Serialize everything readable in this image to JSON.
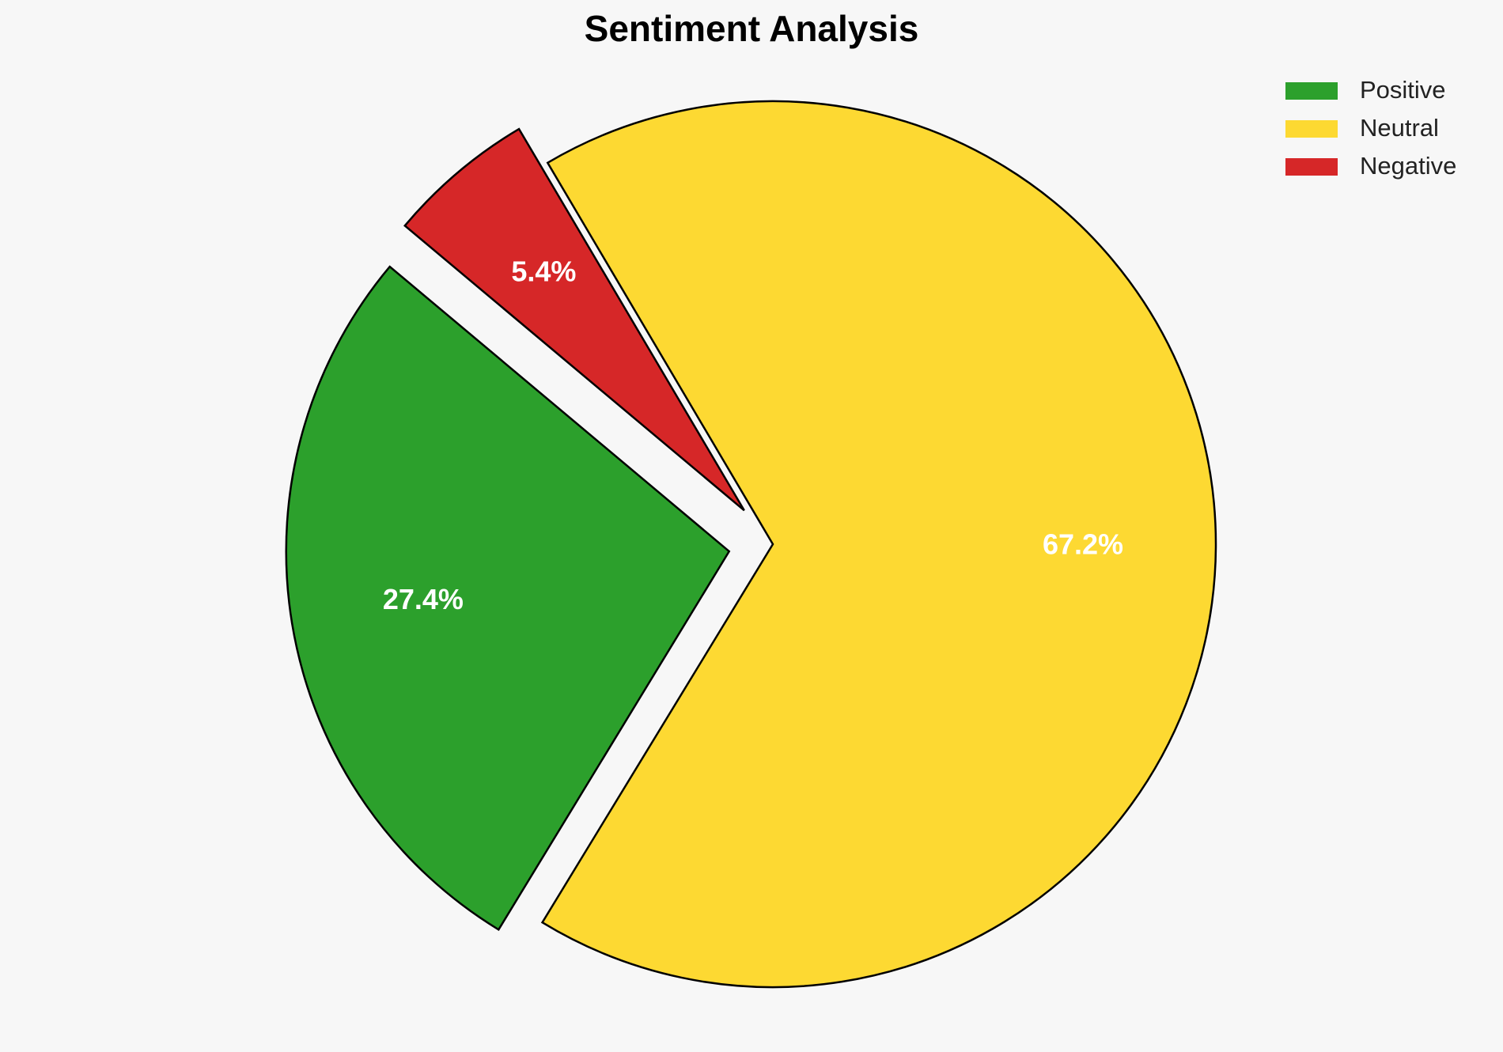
{
  "chart_data": {
    "type": "pie",
    "title": "Sentiment Analysis",
    "categories": [
      "Positive",
      "Neutral",
      "Negative"
    ],
    "values": [
      27.4,
      67.2,
      5.4
    ],
    "value_labels": [
      "27.4%",
      "67.2%",
      "5.4%"
    ],
    "colors": [
      "#2ca02c",
      "#fdd932",
      "#d62728"
    ],
    "explode": [
      0.1,
      0,
      0.1
    ],
    "start_angle": 140,
    "legend": "upper right"
  }
}
